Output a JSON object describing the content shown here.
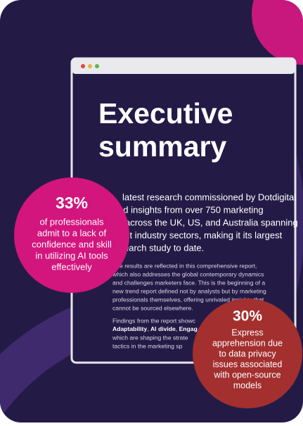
{
  "header": {
    "title": [
      "Executive",
      "summary"
    ]
  },
  "intro": [
    "latest research commissioned by Dotdigital",
    "ed insights from over 750 marketing",
    "across the UK, US, and Australia spanning",
    "ent industry sectors, making it its largest",
    "earch study to date."
  ],
  "body": [
    "The results are reflected in this comprehensive report,",
    "which also addresses the global contemporary dynamics",
    "and challenges marketers face. This is the beginning of a",
    "new trend report defined not by analysts but by marketing",
    "professionals themselves, offering unrivaled insights that",
    "cannot be sourced elsewhere."
  ],
  "findings": {
    "lead": "Findings from the report showc",
    "themes": [
      "Adaptability",
      "AI divide",
      "Engag"
    ],
    "separator": ", ",
    "lines": [
      "which are shaping the strate",
      "tactics in the marketing sp"
    ]
  },
  "stats": [
    {
      "value": "33%",
      "text": [
        "of professionals",
        "admit to a lack of",
        "confidence and skill",
        "in utilizing AI tools",
        "effectively"
      ]
    },
    {
      "value": "30%",
      "text": [
        "Express",
        "apprehension due",
        "to data privacy",
        "issues associated",
        "with open-source",
        "models"
      ]
    }
  ]
}
